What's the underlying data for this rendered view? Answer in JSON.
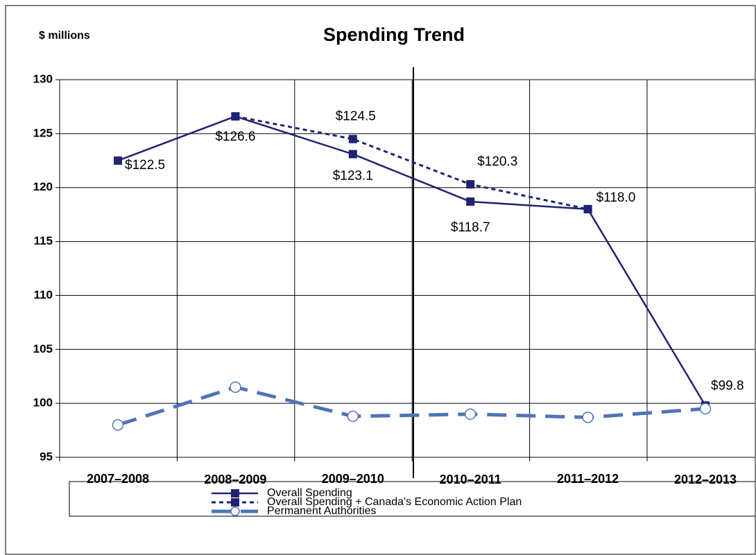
{
  "chart_data": {
    "type": "line",
    "title": "Spending Trend",
    "y_label": "$ millions",
    "categories": [
      "2007–2008",
      "2008–2009",
      "2009–2010",
      "2010–2011",
      "2011–2012",
      "2012–2013"
    ],
    "series": [
      {
        "name": "Overall Spending",
        "color": "#1f2370",
        "marker": "square",
        "dash": "solid",
        "values": [
          122.5,
          126.6,
          123.1,
          118.7,
          118.0,
          99.8
        ],
        "value_labels": [
          "$122.5",
          "$126.6",
          "$123.1",
          "$118.7",
          "$118.0",
          "$99.8"
        ]
      },
      {
        "name": "Overall Spending + Canada's Economic Action Plan",
        "color": "#1f2370",
        "marker": "square",
        "dash": "dotted",
        "values": [
          null,
          126.6,
          124.5,
          120.3,
          118.0,
          null
        ],
        "value_labels": [
          null,
          null,
          "$124.5",
          "$120.3",
          null,
          null
        ]
      },
      {
        "name": "Permanent Authorities",
        "color": "#4f74b8",
        "marker": "circle",
        "dash": "dashed",
        "values": [
          98.0,
          101.5,
          98.8,
          99.0,
          98.7,
          99.5
        ]
      }
    ],
    "ylim": [
      95,
      130
    ],
    "yticks": [
      95,
      100,
      105,
      110,
      115,
      120,
      125,
      130
    ],
    "grid": true,
    "legend": "bottom"
  }
}
